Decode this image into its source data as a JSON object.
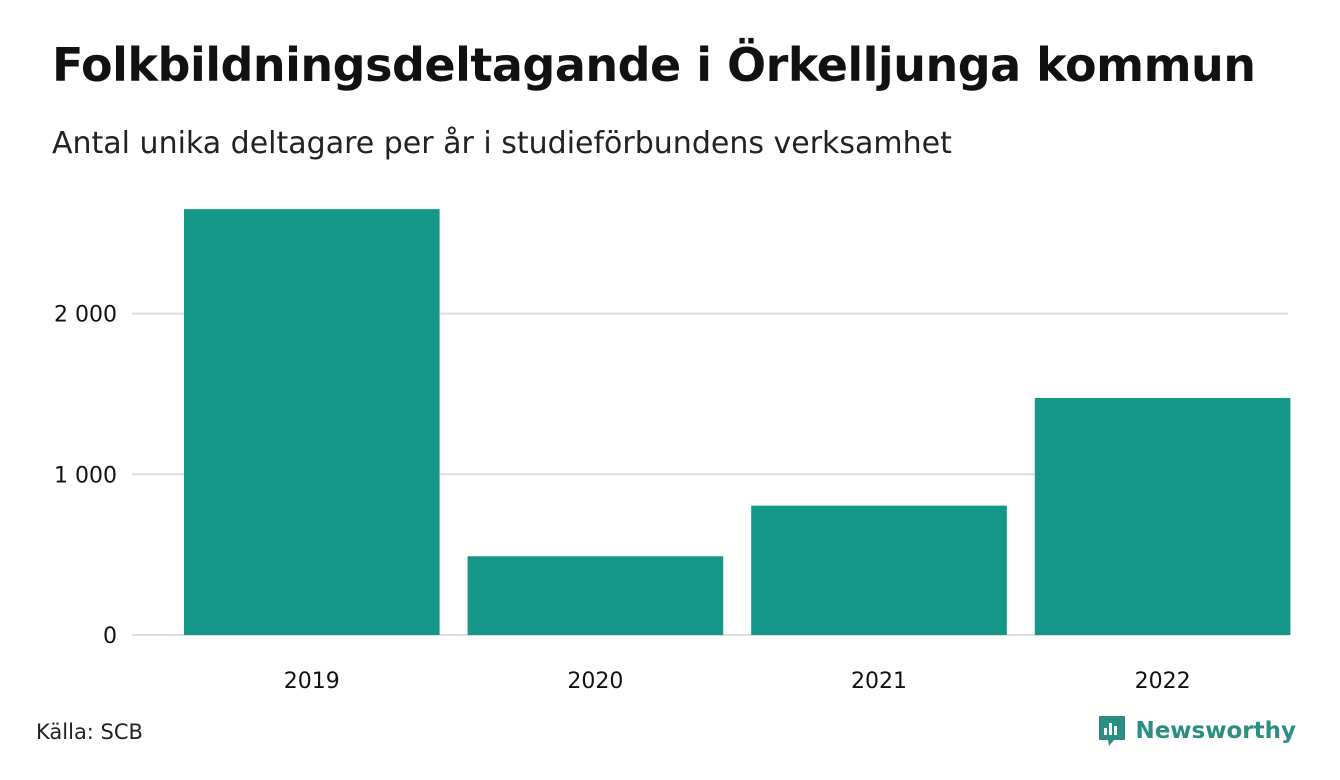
{
  "title": "Folkbildningsdeltagande i Örkelljunga kommun",
  "subtitle": "Antal unika deltagare per år i studieförbundens verksamhet",
  "source": "Källa: SCB",
  "brand": {
    "name": "Newsworthy",
    "icon": "newsworthy-logo-icon",
    "color": "#2a8f82"
  },
  "colors": {
    "bar": "#149688",
    "grid": "#dddddd",
    "text": "#111111"
  },
  "chart_data": {
    "type": "bar",
    "categories": [
      "2019",
      "2020",
      "2021",
      "2022"
    ],
    "values": [
      2650,
      490,
      805,
      1475
    ],
    "ylim": [
      0,
      2700
    ],
    "yticks": [
      0,
      1000,
      2000
    ],
    "ytick_labels": [
      "0",
      "1 000",
      "2 000"
    ],
    "grid": true,
    "legend": "none"
  }
}
